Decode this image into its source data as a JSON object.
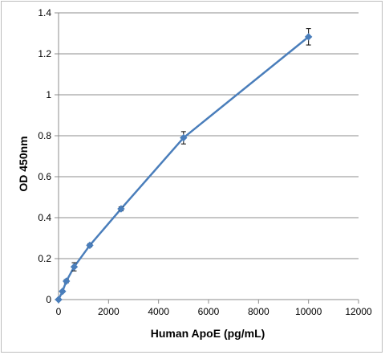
{
  "chart_data": {
    "type": "line",
    "title": "",
    "xlabel": "Human ApoE (pg/mL)",
    "ylabel": "OD 450nm",
    "xlim": [
      0,
      12000
    ],
    "ylim": [
      0,
      1.4
    ],
    "x_ticks": [
      "0",
      "2000",
      "4000",
      "6000",
      "8000",
      "10000",
      "12000"
    ],
    "y_ticks": [
      "0",
      "0.2",
      "0.4",
      "0.6",
      "0.8",
      "1",
      "1.2",
      "1.4"
    ],
    "grid": "horizontal",
    "legend": "none",
    "series": [
      {
        "color": "#4a7ebb",
        "marker": "diamond",
        "points": [
          {
            "x": 0,
            "y": 0.0,
            "err": 0.0
          },
          {
            "x": 156,
            "y": 0.04,
            "err": 0.005
          },
          {
            "x": 312,
            "y": 0.09,
            "err": 0.008
          },
          {
            "x": 625,
            "y": 0.16,
            "err": 0.02
          },
          {
            "x": 1250,
            "y": 0.265,
            "err": 0.008
          },
          {
            "x": 2500,
            "y": 0.443,
            "err": 0.01
          },
          {
            "x": 5000,
            "y": 0.79,
            "err": 0.03
          },
          {
            "x": 10000,
            "y": 1.283,
            "err": 0.04
          }
        ]
      }
    ]
  }
}
